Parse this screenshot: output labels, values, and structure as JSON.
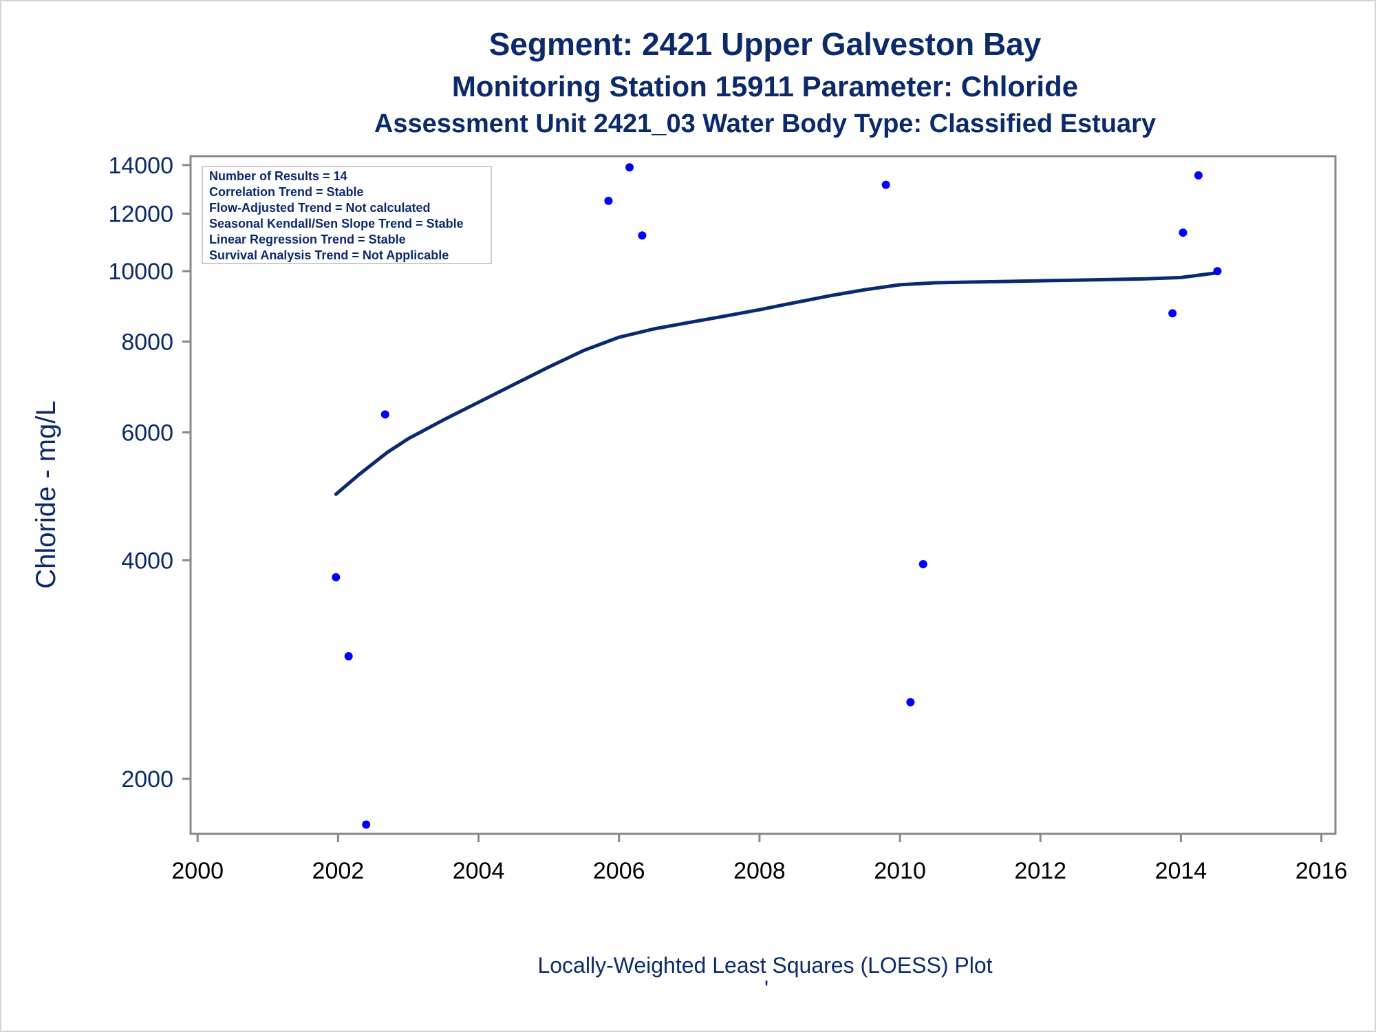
{
  "chart_data": {
    "type": "scatter",
    "title": "Segment: 2421  Upper Galveston Bay",
    "subtitle": "Monitoring Station 15911 Parameter: Chloride",
    "subtitle2": "Assessment Unit 2421_03   Water Body Type: Classified Estuary",
    "xlabel": "",
    "ylabel": "Chloride - mg/L",
    "footer": "Locally-Weighted Least Squares (LOESS) Plot",
    "footer_mark": "'",
    "yscale": "log",
    "xlim": [
      1999.9,
      2016.2
    ],
    "ylim": [
      1680,
      14400
    ],
    "x_ticks": [
      "2000",
      "2002",
      "2004",
      "2006",
      "2008",
      "2010",
      "2012",
      "2014",
      "2016"
    ],
    "y_ticks": [
      "2000",
      "4000",
      "6000",
      "8000",
      "10000",
      "12000",
      "14000"
    ],
    "stats": [
      "Number of Results = 14",
      "Correlation Trend = Stable",
      "Flow-Adjusted Trend = Not calculated",
      "Seasonal Kendall/Sen Slope Trend = Stable",
      "Linear Regression Trend = Stable",
      "Survival Analysis Trend = Not Applicable"
    ],
    "points": [
      {
        "x": 2001.97,
        "y": 3790
      },
      {
        "x": 2002.15,
        "y": 2950
      },
      {
        "x": 2002.4,
        "y": 1730
      },
      {
        "x": 2002.67,
        "y": 6350
      },
      {
        "x": 2005.85,
        "y": 12500
      },
      {
        "x": 2006.15,
        "y": 13900
      },
      {
        "x": 2006.33,
        "y": 11200
      },
      {
        "x": 2009.8,
        "y": 13150
      },
      {
        "x": 2010.15,
        "y": 2550
      },
      {
        "x": 2010.33,
        "y": 3950
      },
      {
        "x": 2013.88,
        "y": 8750
      },
      {
        "x": 2014.03,
        "y": 11300
      },
      {
        "x": 2014.25,
        "y": 13550
      },
      {
        "x": 2014.52,
        "y": 10000
      }
    ],
    "loess": {
      "x": [
        2001.97,
        2002.3,
        2002.7,
        2003.0,
        2003.5,
        2004.0,
        2004.5,
        2005.0,
        2005.5,
        2006.0,
        2006.5,
        2007.0,
        2007.5,
        2008.0,
        2008.5,
        2009.0,
        2009.5,
        2010.0,
        2010.5,
        2011.0,
        2011.5,
        2012.0,
        2012.5,
        2013.0,
        2013.5,
        2014.0,
        2014.52
      ],
      "y": [
        4930,
        5250,
        5630,
        5880,
        6240,
        6600,
        6980,
        7380,
        7780,
        8110,
        8330,
        8500,
        8670,
        8850,
        9050,
        9250,
        9430,
        9580,
        9640,
        9660,
        9680,
        9700,
        9720,
        9740,
        9760,
        9800,
        9950
      ]
    },
    "colors": {
      "title": "#0c2a6b",
      "points": "#0000ff",
      "line": "#0a2a6e",
      "axis": "#888888",
      "xtick_text": "#000000"
    },
    "grid": false,
    "legend": "top-left"
  }
}
